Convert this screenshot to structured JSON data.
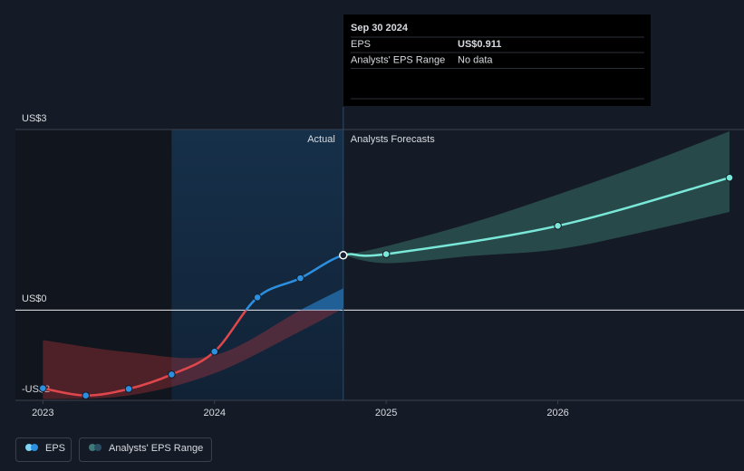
{
  "chart_data": {
    "type": "line",
    "actual_end": 2024.75,
    "labels": {
      "actual": "Actual",
      "forecast": "Analysts Forecasts"
    },
    "xlim": [
      2022.84,
      2027.0
    ],
    "xticks": [
      2023,
      2024,
      2025,
      2026
    ],
    "ylim": [
      -1.5,
      3
    ],
    "yticks": [
      {
        "value": 3,
        "label": "US$3"
      },
      {
        "value": 0,
        "label": "US$0"
      },
      {
        "value": -1.5,
        "label": "-US$2"
      }
    ],
    "grid": true,
    "series": [
      {
        "name": "EPS",
        "color": "#2d8fe0",
        "x": [
          2023.0,
          2023.25,
          2023.5,
          2023.75,
          2024.0,
          2024.25,
          2024.5,
          2024.75,
          2025.0,
          2026.0,
          2027.0
        ],
        "values": [
          -1.3,
          -1.42,
          -1.31,
          -1.07,
          -0.69,
          0.21,
          0.53,
          0.911,
          0.93,
          1.4,
          2.2
        ]
      },
      {
        "name": "Analysts' EPS Range",
        "color": "#2f5a57",
        "segments": [
          {
            "x": [
              2023.0,
              2023.5,
              2024.0,
              2024.5,
              2024.75
            ],
            "low": [
              -1.48,
              -1.42,
              -1.05,
              -0.35,
              0.03
            ],
            "high": [
              -0.5,
              -0.7,
              -0.75,
              0.0,
              0.36
            ]
          },
          {
            "x": [
              2024.75,
              2025.0,
              2025.5,
              2026.0,
              2026.5,
              2027.0
            ],
            "low": [
              0.911,
              0.78,
              0.9,
              1.01,
              1.3,
              1.63
            ],
            "high": [
              0.911,
              1.06,
              1.45,
              1.92,
              2.42,
              2.97
            ]
          }
        ]
      }
    ],
    "tooltip": {
      "date": "Sep 30 2024",
      "rows": [
        [
          "EPS",
          "US$0.911"
        ],
        [
          "Analysts' EPS Range",
          "No data"
        ]
      ]
    }
  }
}
